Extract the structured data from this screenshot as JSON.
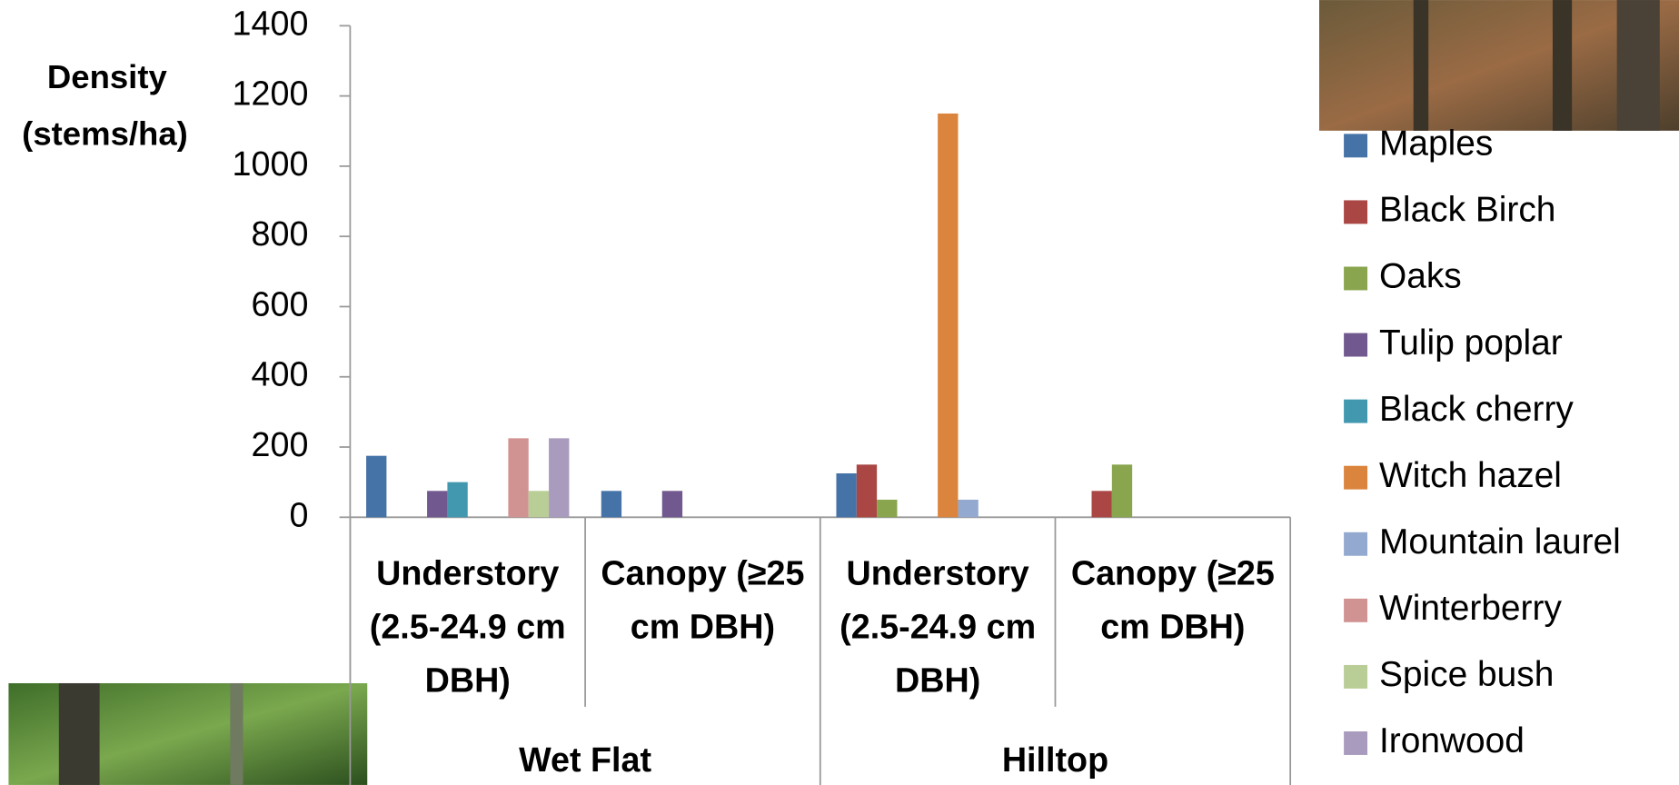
{
  "chart_data": {
    "type": "bar",
    "y_label": [
      "Density",
      "(stems/ha)"
    ],
    "categories": [
      "Understory (2.5-24.9 cm DBH)",
      "Canopy (≥25 cm DBH)",
      "Understory (2.5-24.9 cm DBH)",
      "Canopy (≥25 cm DBH)"
    ],
    "group_labels": [
      "Wet Flat",
      "Hilltop"
    ],
    "ylim": [
      0,
      1400
    ],
    "yticks": [
      0,
      200,
      400,
      600,
      800,
      1000,
      1200,
      1400
    ],
    "series": [
      {
        "name": "Maples",
        "color": "#4572a7",
        "values": [
          175,
          75,
          125,
          0
        ]
      },
      {
        "name": "Black Birch",
        "color": "#aa4643",
        "values": [
          0,
          0,
          150,
          75
        ]
      },
      {
        "name": "Oaks",
        "color": "#89a54e",
        "values": [
          0,
          0,
          50,
          150
        ]
      },
      {
        "name": "Tulip poplar",
        "color": "#71588f",
        "values": [
          75,
          75,
          0,
          0
        ]
      },
      {
        "name": "Black cherry",
        "color": "#4198af",
        "values": [
          100,
          0,
          0,
          0
        ]
      },
      {
        "name": "Witch hazel",
        "color": "#db843d",
        "values": [
          0,
          0,
          1150,
          0
        ]
      },
      {
        "name": "Mountain laurel",
        "color": "#93a9cf",
        "values": [
          0,
          0,
          50,
          0
        ]
      },
      {
        "name": "Winterberry",
        "color": "#d19392",
        "values": [
          225,
          0,
          0,
          0
        ]
      },
      {
        "name": "Spice bush",
        "color": "#b9cd96",
        "values": [
          75,
          0,
          0,
          0
        ]
      },
      {
        "name": "Ironwood",
        "color": "#a99bbd",
        "values": [
          225,
          0,
          0,
          0
        ]
      }
    ]
  }
}
